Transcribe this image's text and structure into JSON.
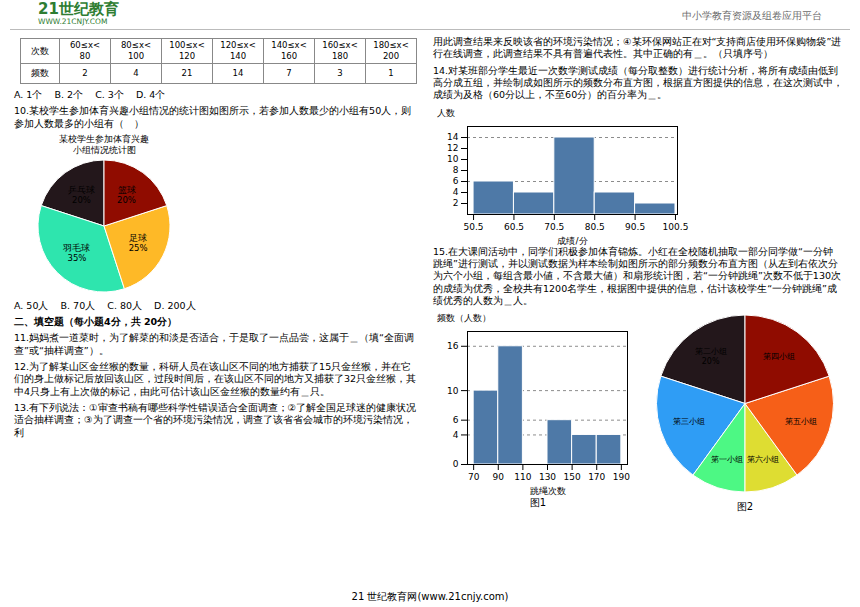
{
  "title": "21世纪教育",
  "subtitle": "WWW.21CNJY.COM",
  "color": "#2e7d32",
  "annotations": [
    "A. 1个    B. 2个    C. 3个    D. 4个",
    "10.某校学生参加体育兴趣小组情况的统计图如图所示，若参加人数最少的小组有50人，则参加人数最多的小组有（　）",
    "A. 50人    B. 70人    C. 80人    D. 200人",
    "二、填空题（每小题4分，共 20分）",
    "11.妈妈煮一道菜时，为了解菜的和淡是否适合，于是取了一点品尝，这属于＿（填“全面调查”或“抽样调查”）。",
    "12.为了解某山区金丝猴的数量，科研人员在该山区不同的地方捕获了15只金丝猴，并在它们的身上做标记后放回该山区，过段时间后，在该山区不同的地方又捕获了32只金丝猴，其中4只身上有上次做的标记，由此可估计该山区金丝猴的数量约有＿只。",
    "13.有下列说法：①审查书稿有哪些科学性错误适合全面调查；②了解全国足球迷的健康状况适合抽样调查；③为了调查一个省的环境污染情况，调查了该省省会城市的环境污染情况，利",
    "用此调查结果来反映该省的环境污染情况；④某环保网站正在对“支持商店使用环保购物袋”进行在线调查，此调查结果不具有普遍代表性。其中正确的有＿。（只填序号）",
    "14.对某班部分学生最近一次数学测试成绩（每分取整数）进行统计分析，将所有成绩由低到高分成五组，并绘制成如图所示的频数分布直方图，根据直方图提供的信息，在这次测试中，成绩为及格（60分以上，不至60分）的百分率为＿。",
    "15.在大课间活动中，同学们积极参加体育锦炼。小红在全校随机抽取一部分同学做“一分钟跳绳”进行测试，并以测试数据为样本绘制如图所示的部分频数分布直方图（从左到右依次分为六个小组，每组含最小値，不含最大値）和扇形统计图，若“一分钟跳绳”次数不低于130次的成绩为优秀，全校共有1200名学生，根据图中提供的信息，估计该校学生“一分钟跳绳”成绩优秀的人数为＿人。",
    "中小学教育资源及组卷应用平台",
    "21 世纪教育网(www.21cnjy.com)"
  ],
  "chart_data": [
    {
      "type": "table",
      "color": "#888888",
      "columns": [
        "次数",
        "60≤x<\n80",
        "80≤x<\n100",
        "100≤x<\n120",
        "120≤x<\n140",
        "140≤x<\n160",
        "160≤x<\n180",
        "180≤x<\n200"
      ],
      "rows": [
        [
          "频数",
          2,
          4,
          21,
          14,
          7,
          3,
          1
        ]
      ]
    },
    {
      "type": "pie",
      "title": "某校学生参加体育兴趣\n小组情况统计图",
      "categories": [
        "乒乓球",
        "羽毛球",
        "足球",
        "篮球"
      ],
      "values": [
        20,
        35,
        25,
        20
      ],
      "value_labels": [
        "20%",
        "35%",
        "25%",
        "20%"
      ],
      "data_labels": true
    },
    {
      "type": "histogram",
      "bins": [
        50.5,
        60.5,
        70.5,
        80.5,
        90.5,
        100.5
      ],
      "values": [
        6,
        4,
        14,
        4,
        2
      ],
      "color": "#4e79a7",
      "xlabel": "成绩/分",
      "ylabel": "人数",
      "xlim": [
        49,
        101
      ],
      "xticks": [
        50.5,
        60.5,
        70.5,
        80.5,
        90.5,
        100.5
      ],
      "ylim": [
        0,
        16
      ],
      "yticks": [
        2,
        4,
        6,
        8,
        10,
        12,
        14
      ],
      "ref_lines": [
        14,
        6
      ]
    },
    {
      "type": "histogram",
      "title": "图1",
      "bins": [
        70,
        90,
        110,
        130,
        150,
        170,
        190
      ],
      "values": [
        10,
        16,
        0,
        6,
        4,
        4
      ],
      "color": "#4e79a7",
      "xlabel": "跳绳次数",
      "ylabel": "频数（人数）",
      "xlim": [
        65,
        195
      ],
      "xticks": [
        70,
        90,
        110,
        130,
        150,
        170,
        190
      ],
      "ylim": [
        0,
        18
      ],
      "yticks": [
        0,
        4,
        6,
        10,
        16
      ],
      "ref_lines": [
        16,
        10,
        6,
        4
      ]
    },
    {
      "type": "pie",
      "title": "图2",
      "categories": [
        "第二小组",
        "第三小组",
        "第一小组",
        "第六小组",
        "第五小组",
        "第四小组"
      ],
      "values": [
        20,
        20,
        10,
        10,
        20,
        20
      ],
      "value_labels": [
        "20%",
        null,
        null,
        null,
        null,
        null
      ],
      "data_labels": true
    }
  ]
}
